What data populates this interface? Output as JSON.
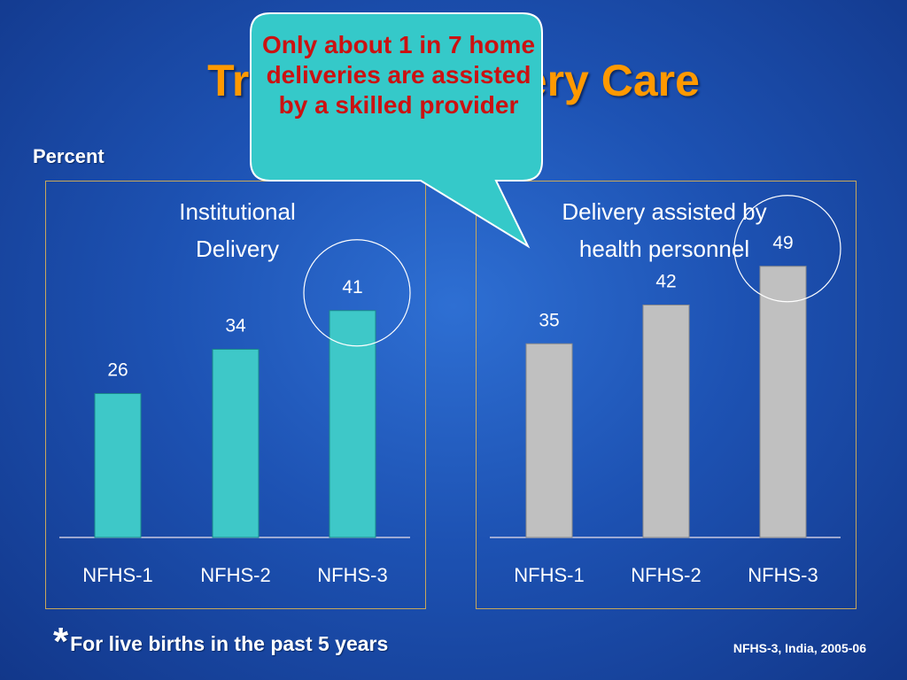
{
  "slide": {
    "title": "Trends in Delivery Care",
    "percent_label": "Percent",
    "callout": "Only about 1 in 7 home deliveries are assisted by a skilled provider",
    "footnote_star": "*",
    "footnote_text": "For live births in the past 5 years",
    "source": "NFHS-3, India, 2005-06"
  },
  "chart_data": [
    {
      "type": "bar",
      "title": "Institutional Delivery",
      "categories": [
        "NFHS-1",
        "NFHS-2",
        "NFHS-3"
      ],
      "values": [
        26,
        34,
        41
      ],
      "color": "#3ec8c8",
      "highlighted": "NFHS-3"
    },
    {
      "type": "bar",
      "title": "Delivery assisted by health personnel",
      "categories": [
        "NFHS-1",
        "NFHS-2",
        "NFHS-3"
      ],
      "values": [
        35,
        42,
        49
      ],
      "color": "#c0c0c0",
      "highlighted": "NFHS-3"
    }
  ]
}
